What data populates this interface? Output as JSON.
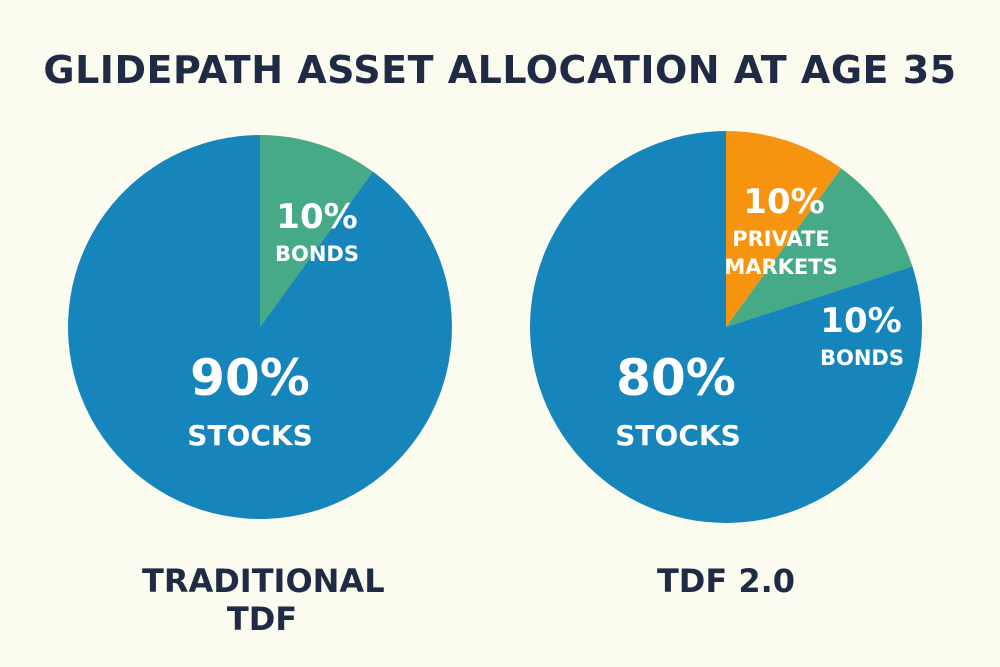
{
  "title": "GLIDEPATH ASSET ALLOCATION AT AGE 35",
  "chart_data": [
    {
      "type": "pie",
      "label": "TRADITIONAL TDF",
      "slices": [
        {
          "value_label": "10%",
          "category": "BONDS",
          "value": 10,
          "color": "#47aa86"
        },
        {
          "value_label": "90%",
          "category": "STOCKS",
          "value": 90,
          "color": "#1685bb"
        }
      ]
    },
    {
      "type": "pie",
      "label": "TDF 2.0",
      "slices": [
        {
          "value_label": "10%",
          "category": "PRIVATE MARKETS",
          "value": 10,
          "color": "#f7940f"
        },
        {
          "value_label": "10%",
          "category": "BONDS",
          "value": 10,
          "color": "#47aa86"
        },
        {
          "value_label": "80%",
          "category": "STOCKS",
          "value": 80,
          "color": "#1685bb"
        }
      ]
    }
  ]
}
